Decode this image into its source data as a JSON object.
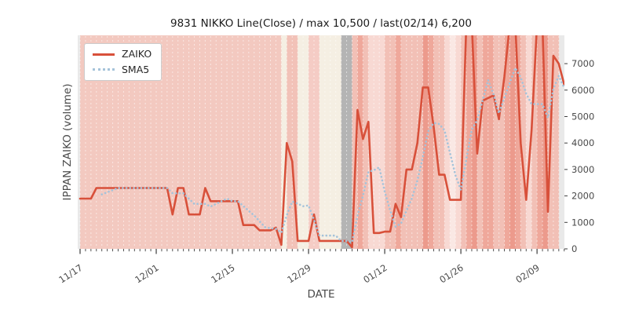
{
  "title": "9831 NIKKO Line(Close) / max 10,500 / last(02/14) 6,200",
  "legend": {
    "items": [
      {
        "label": "ZAIKO",
        "color": "#d8503a",
        "style": "solid"
      },
      {
        "label": "SMA5",
        "color": "#a5c3da",
        "style": "dotted"
      }
    ]
  },
  "axes": {
    "x_label": "DATE",
    "y_label": "IPPAN ZAIKO (volume)",
    "y_ticks": [
      0,
      1000,
      2000,
      3000,
      4000,
      5000,
      6000,
      7000
    ],
    "y_tick_side": "right",
    "x_major_tick_labels": [
      "11/17",
      "12/01",
      "12/15",
      "12/29",
      "01/12",
      "01/26",
      "02/09"
    ],
    "x_major_tick_days": [
      0,
      14,
      28,
      42,
      56,
      70,
      84
    ],
    "ylim": [
      0,
      8070
    ],
    "grid": "vertical-white-dashed-per-day"
  },
  "colors": {
    "figure_bg": "#ffffff",
    "plot_bg": "#e9e9e9",
    "zaiko_line": "#d8503a",
    "sma5_line": "#a5c3da",
    "tick_text": "#4a4a4a",
    "tick_mark": "#3c3c3c",
    "gridline": "rgba(255,255,255,0.55)",
    "gray_band": "#b4b4b4"
  },
  "chart_data": {
    "type": "line",
    "title": "9831 NIKKO Line(Close) / max 10,500 / last(02/14) 6,200",
    "xlabel": "DATE",
    "ylabel": "IPPAN ZAIKO (volume)",
    "ylim": [
      0,
      8070
    ],
    "note": "values of 8500 are spikes clipped at the top of the plot; SMA5 is the 5-day moving average of ZAIKO computed at render time; background stripe per day colored, gray band = 01/04-01/05",
    "x": [
      "11/17",
      "11/18",
      "11/19",
      "11/20",
      "11/21",
      "11/22",
      "11/23",
      "11/24",
      "11/25",
      "11/26",
      "11/27",
      "11/28",
      "11/29",
      "11/30",
      "12/01",
      "12/02",
      "12/03",
      "12/04",
      "12/05",
      "12/06",
      "12/07",
      "12/08",
      "12/09",
      "12/10",
      "12/11",
      "12/12",
      "12/13",
      "12/14",
      "12/15",
      "12/16",
      "12/17",
      "12/18",
      "12/19",
      "12/20",
      "12/21",
      "12/22",
      "12/23",
      "12/24",
      "12/25",
      "12/26",
      "12/27",
      "12/28",
      "12/29",
      "12/30",
      "12/31",
      "01/01",
      "01/02",
      "01/03",
      "01/04",
      "01/05",
      "01/06",
      "01/07",
      "01/08",
      "01/09",
      "01/10",
      "01/11",
      "01/12",
      "01/13",
      "01/14",
      "01/15",
      "01/16",
      "01/17",
      "01/18",
      "01/19",
      "01/20",
      "01/21",
      "01/22",
      "01/23",
      "01/24",
      "01/25",
      "01/26",
      "01/27",
      "01/28",
      "01/29",
      "01/30",
      "01/31",
      "02/01",
      "02/02",
      "02/03",
      "02/04",
      "02/05",
      "02/06",
      "02/07",
      "02/08",
      "02/09",
      "02/10",
      "02/11",
      "02/12",
      "02/13",
      "02/14"
    ],
    "series": [
      {
        "name": "ZAIKO",
        "values": [
          1900,
          1900,
          1900,
          2300,
          2300,
          2300,
          2300,
          2300,
          2300,
          2300,
          2300,
          2300,
          2300,
          2300,
          2300,
          2300,
          2300,
          1300,
          2300,
          2300,
          1300,
          1300,
          1300,
          2300,
          1800,
          1800,
          1800,
          1800,
          1800,
          1800,
          900,
          900,
          900,
          700,
          700,
          700,
          800,
          150,
          4000,
          3300,
          300,
          300,
          300,
          1300,
          300,
          300,
          300,
          300,
          300,
          300,
          60,
          5250,
          4150,
          4800,
          600,
          600,
          650,
          650,
          1700,
          1200,
          3000,
          3000,
          4000,
          6100,
          6100,
          4600,
          2800,
          2800,
          1850,
          1850,
          1850,
          8500,
          8500,
          3600,
          5600,
          5700,
          5800,
          4900,
          6500,
          8500,
          8500,
          4000,
          1850,
          4500,
          8500,
          8500,
          1400,
          7300,
          7000,
          6200
        ]
      },
      {
        "name": "SMA5",
        "derived": "5-day moving average of ZAIKO"
      }
    ],
    "day_colors": [
      "#f3c9c0",
      "#f3c9c0",
      "#f3c9c0",
      "#f3c9c0",
      "#f3c9c0",
      "#f3c9c0",
      "#f3c9c0",
      "#f3c9c0",
      "#f3c9c0",
      "#f3c9c0",
      "#f3c9c0",
      "#f3c9c0",
      "#f3c9c0",
      "#f3c9c0",
      "#f3c9c0",
      "#f3c9c0",
      "#f3c9c0",
      "#f3c9c0",
      "#f3c9c0",
      "#f3c9c0",
      "#f3c9c0",
      "#f3c9c0",
      "#f3c9c0",
      "#f3c9c0",
      "#f3c9c0",
      "#f3c9c0",
      "#f3c9c0",
      "#f3c9c0",
      "#f3c9c0",
      "#f3c9c0",
      "#f3c9c0",
      "#f3c9c0",
      "#f3c9c0",
      "#f3c9c0",
      "#f3c9c0",
      "#f3c9c0",
      "#f3c9c0",
      "#f5efe3",
      "#f2c2b8",
      "#f2c2b8",
      "#f5efe3",
      "#f5efe3",
      "#f5ccc5",
      "#f5ccc5",
      "#f5efe3",
      "#f5efe3",
      "#f5efe3",
      "#f5efe3",
      "#b4b4b4",
      "#b4b4b4",
      "#f2c0b6",
      "#efa89b",
      "#f2c0b6",
      "#f8d9d3",
      "#f8d9d3",
      "#f8d9d3",
      "#f2c0b6",
      "#f2c0b6",
      "#efa89b",
      "#f2c0b6",
      "#f2c0b6",
      "#f2c0b6",
      "#f2c0b6",
      "#ec9a8c",
      "#efa89b",
      "#f2c0b6",
      "#f2c0b6",
      "#f8d9d3",
      "#fae8e4",
      "#f8d9d3",
      "#f2c0b6",
      "#efa89b",
      "#ec9a8c",
      "#f2c0b6",
      "#efa89b",
      "#efa89b",
      "#f2c0b6",
      "#f2c0b6",
      "#efa89b",
      "#ec9a8c",
      "#efa89b",
      "#f2c0b6",
      "#f8d9d3",
      "#f2c0b6",
      "#efa89b",
      "#ec9a8c",
      "#f2c0b6",
      "#f2c0b6",
      null,
      null
    ]
  }
}
